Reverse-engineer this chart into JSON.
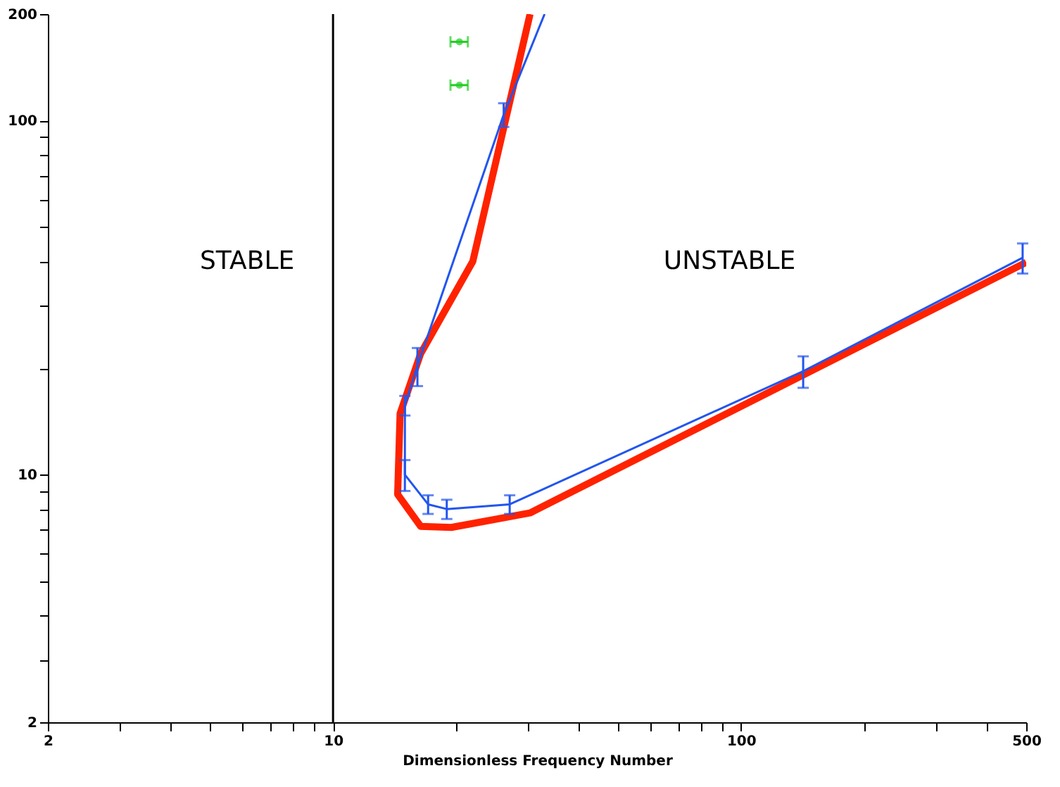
{
  "chart_data": {
    "type": "line",
    "xlabel": "Dimensionless Frequency Number",
    "log": "xy",
    "grid": false,
    "xlim": [
      2,
      500
    ],
    "ylim": [
      2,
      200
    ],
    "xticks": [
      2,
      {
        "value": 3,
        "label": null
      },
      {
        "value": 4,
        "label": null
      },
      {
        "value": 5,
        "label": null
      },
      {
        "value": 6,
        "label": null
      },
      {
        "value": 7,
        "label": null
      },
      {
        "value": 8,
        "label": null
      },
      {
        "value": 9,
        "label": null
      },
      10,
      {
        "value": 20,
        "label": null
      },
      {
        "value": 30,
        "label": null
      },
      {
        "value": 40,
        "label": null
      },
      {
        "value": 50,
        "label": null
      },
      {
        "value": 60,
        "label": null
      },
      {
        "value": 70,
        "label": null
      },
      {
        "value": 80,
        "label": null
      },
      {
        "value": 90,
        "label": null
      },
      100,
      {
        "value": 200,
        "label": null
      },
      {
        "value": 300,
        "label": null
      },
      {
        "value": 400,
        "label": null
      },
      500
    ],
    "yticks": [
      2,
      {
        "value": 3,
        "label": null
      },
      {
        "value": 4,
        "label": null
      },
      {
        "value": 5,
        "label": null
      },
      {
        "value": 6,
        "label": null
      },
      {
        "value": 7,
        "label": null
      },
      {
        "value": 8,
        "label": null
      },
      {
        "value": 9,
        "label": null
      },
      10,
      {
        "value": 20,
        "label": null
      },
      {
        "value": 30,
        "label": null
      },
      {
        "value": 40,
        "label": null
      },
      {
        "value": 50,
        "label": null
      },
      {
        "value": 60,
        "label": null
      },
      {
        "value": 70,
        "label": null
      },
      {
        "value": 80,
        "label": null
      },
      {
        "value": 90,
        "label": null
      },
      100,
      200
    ],
    "series": [
      {
        "color": "#ff2200",
        "x": [
          30.4,
          22,
          16.4,
          14.6,
          14.4,
          16.4,
          19.5,
          30.4,
          500
        ],
        "values": [
          200,
          40,
          22,
          14.9,
          8.8,
          7.15,
          7.1,
          7.8,
          39.8
        ]
      },
      {
        "color": "#2255ee",
        "x": [
          33,
          26.2,
          16.1,
          15,
          15,
          17.1,
          19,
          27.1,
          142,
          490
        ],
        "values": [
          200,
          104,
          20.3,
          15.7,
          10,
          8.25,
          8,
          8.25,
          19.6,
          41
        ],
        "errors": [
          null,
          8,
          2.5,
          1,
          1,
          0.5,
          0.5,
          0.5,
          2,
          4
        ]
      },
      {
        "type": "scatter",
        "marker": "circle",
        "color": "#22cc22",
        "x": [
          20.4,
          20.4
        ],
        "values": [
          167,
          126
        ],
        "xerrors": [
          1,
          1
        ]
      }
    ],
    "ref_lines": [
      {
        "axis": "x",
        "value": 10,
        "color": "#000000"
      }
    ],
    "annotations": [
      "STABLE",
      "UNSTABLE"
    ]
  }
}
